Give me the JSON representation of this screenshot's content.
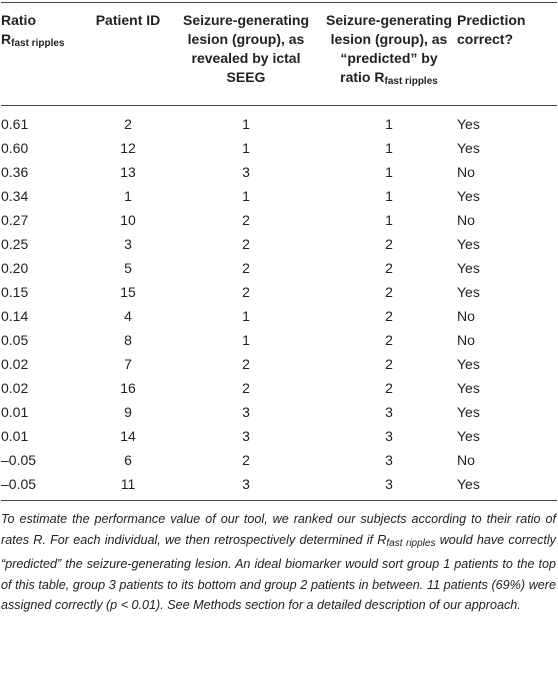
{
  "table": {
    "header": [
      [
        {
          "text": "Ratio"
        },
        {
          "text": "R",
          "sub": "fast ripples"
        }
      ],
      [
        {
          "text": "Patient ID"
        }
      ],
      [
        {
          "text": "Seizure-generating lesion (group), as revealed by ictal SEEG"
        }
      ],
      [
        {
          "text": "Seizure-generating lesion (group), as “predicted” by ratio R",
          "sub": "fast ripples"
        }
      ],
      [
        {
          "text": "Prediction correct?"
        }
      ]
    ],
    "rows": [
      [
        "0.61",
        2,
        1,
        1,
        "Yes"
      ],
      [
        "0.60",
        12,
        1,
        1,
        "Yes"
      ],
      [
        "0.36",
        13,
        3,
        1,
        "No"
      ],
      [
        "0.34",
        1,
        1,
        1,
        "Yes"
      ],
      [
        "0.27",
        10,
        2,
        1,
        "No"
      ],
      [
        "0.25",
        3,
        2,
        2,
        "Yes"
      ],
      [
        "0.20",
        5,
        2,
        2,
        "Yes"
      ],
      [
        "0.15",
        15,
        2,
        2,
        "Yes"
      ],
      [
        "0.14",
        4,
        1,
        2,
        "No"
      ],
      [
        "0.05",
        8,
        1,
        2,
        "No"
      ],
      [
        "0.02",
        7,
        2,
        2,
        "Yes"
      ],
      [
        "0.02",
        16,
        2,
        2,
        "Yes"
      ],
      [
        "0.01",
        9,
        3,
        3,
        "Yes"
      ],
      [
        "0.01",
        14,
        3,
        3,
        "Yes"
      ],
      [
        "–0.05",
        6,
        2,
        3,
        "No"
      ],
      [
        "–0.05",
        11,
        3,
        3,
        "Yes"
      ]
    ],
    "footnote": [
      {
        "text": "To estimate the performance value of our tool, we ranked our subjects according to their ratio of rates R. For each individual, we then retrospectively determined if R",
        "sub": "fast ripples"
      },
      {
        "text": " would have correctly “predicted” the seizure-generating lesion. An ideal biomarker would sort group 1 patients to the top of this table, group 3 patients to its bottom and group 2 patients in between. 11 patients (69%) were assigned correctly (p < 0.01). See Methods section for a detailed description of our approach."
      }
    ]
  }
}
